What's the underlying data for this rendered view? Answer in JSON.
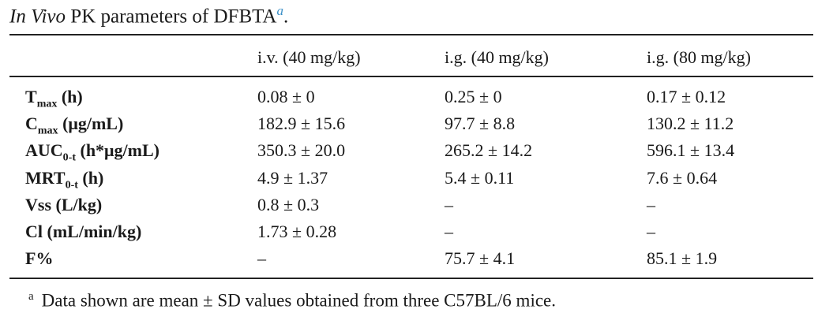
{
  "title": {
    "italic": "In Vivo",
    "text": " PK parameters of DFBTA",
    "footnote_mark": "a",
    "end": "."
  },
  "columns": [
    "i.v. (40 mg/kg)",
    "i.g. (40 mg/kg)",
    "i.g. (80 mg/kg)"
  ],
  "rows": [
    {
      "base": "T",
      "sub": "max",
      "rest": " (h)",
      "values": [
        "0.08 ± 0",
        "0.25 ± 0",
        "0.17 ± 0.12"
      ]
    },
    {
      "base": "C",
      "sub": "max",
      "rest": " (μg/mL)",
      "values": [
        "182.9 ± 15.6",
        "97.7 ± 8.8",
        "130.2 ± 11.2"
      ]
    },
    {
      "base": "AUC",
      "sub": "0-t",
      "rest": " (h*μg/mL)",
      "values": [
        "350.3 ± 20.0",
        "265.2 ± 14.2",
        "596.1 ± 13.4"
      ]
    },
    {
      "base": "MRT",
      "sub": "0-t",
      "rest": " (h)",
      "values": [
        "4.9 ± 1.37",
        "5.4 ± 0.11",
        "7.6 ± 0.64"
      ]
    },
    {
      "base": "Vss (L/kg)",
      "sub": "",
      "rest": "",
      "values": [
        "0.8 ± 0.3",
        "–",
        "–"
      ]
    },
    {
      "base": "Cl (mL/min/kg)",
      "sub": "",
      "rest": "",
      "values": [
        "1.73 ± 0.28",
        "–",
        "–"
      ]
    },
    {
      "base": "F%",
      "sub": "",
      "rest": "",
      "values": [
        "–",
        "75.7 ± 4.1",
        "85.1 ± 1.9"
      ]
    }
  ],
  "footnote": {
    "mark": "a",
    "text": "Data shown are mean ± SD values obtained from three C57BL/6 mice."
  }
}
